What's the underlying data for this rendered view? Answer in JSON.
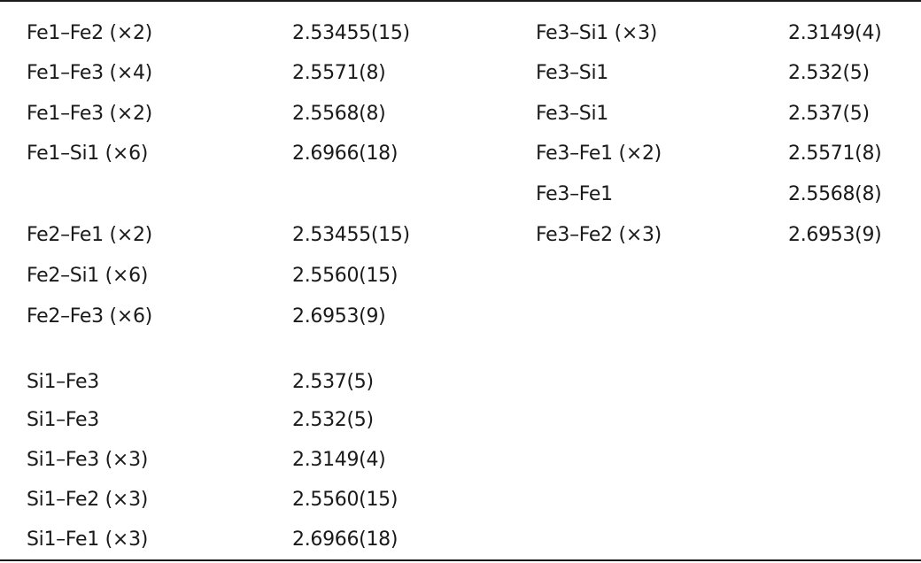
{
  "left": [
    {
      "bond": "Fe1–Fe2 (×2)",
      "distance": "2.53455(15)"
    },
    {
      "bond": "Fe1–Fe3 (×4)",
      "distance": "2.5571(8)"
    },
    {
      "bond": "Fe1–Fe3 (×2)",
      "distance": "2.5568(8)"
    },
    {
      "bond": "Fe1–Si1 (×6)",
      "distance": "2.6966(18)"
    },
    {
      "bond": "Fe2–Fe1 (×2)",
      "distance": "2.53455(15)"
    },
    {
      "bond": "Fe2–Si1 (×6)",
      "distance": "2.5560(15)"
    },
    {
      "bond": "Fe2–Fe3 (×6)",
      "distance": "2.6953(9)"
    },
    {
      "bond": "Si1–Fe3",
      "distance": "2.537(5)"
    },
    {
      "bond": "Si1–Fe3",
      "distance": "2.532(5)"
    },
    {
      "bond": "Si1–Fe3 (×3)",
      "distance": "2.3149(4)"
    },
    {
      "bond": "Si1–Fe2 (×3)",
      "distance": "2.5560(15)"
    },
    {
      "bond": "Si1–Fe1 (×3)",
      "distance": "2.6966(18)"
    }
  ],
  "right": [
    {
      "bond": "Fe3–Si1 (×3)",
      "distance": "2.3149(4)"
    },
    {
      "bond": "Fe3–Si1",
      "distance": "2.532(5)"
    },
    {
      "bond": "Fe3–Si1",
      "distance": "2.537(5)"
    },
    {
      "bond": "Fe3–Fe1 (×2)",
      "distance": "2.5571(8)"
    },
    {
      "bond": "Fe3–Fe1",
      "distance": "2.5568(8)"
    },
    {
      "bond": "Fe3–Fe2 (×3)",
      "distance": "2.6953(9)"
    }
  ]
}
